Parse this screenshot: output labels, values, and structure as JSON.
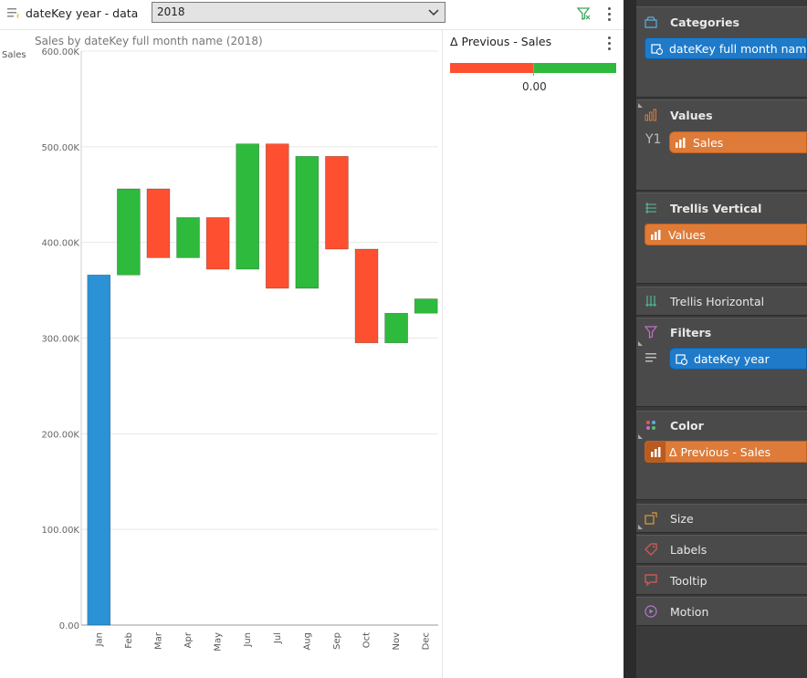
{
  "filter_bar": {
    "label": "dateKey year - data",
    "selected": "2018",
    "icon": "filter-list-icon"
  },
  "chart_data": {
    "type": "bar",
    "subtype": "waterfall",
    "title": "Sales by dateKey full month name (2018)",
    "ylabel": "Sales",
    "xlabel": "",
    "ylim": [
      0,
      600000
    ],
    "y_ticks": [
      "0.00",
      "100.00K",
      "200.00K",
      "300.00K",
      "400.00K",
      "500.00K",
      "600.00K"
    ],
    "categories": [
      "Jan",
      "Feb",
      "Mar",
      "Apr",
      "May",
      "Jun",
      "Jul",
      "Aug",
      "Sep",
      "Oct",
      "Nov",
      "Dec"
    ],
    "bars": [
      {
        "start": 0,
        "end": 366000,
        "kind": "total"
      },
      {
        "start": 366000,
        "end": 456000,
        "kind": "increase"
      },
      {
        "start": 456000,
        "end": 384000,
        "kind": "decrease"
      },
      {
        "start": 384000,
        "end": 426000,
        "kind": "increase"
      },
      {
        "start": 426000,
        "end": 372000,
        "kind": "decrease"
      },
      {
        "start": 372000,
        "end": 503000,
        "kind": "increase"
      },
      {
        "start": 503000,
        "end": 352000,
        "kind": "decrease"
      },
      {
        "start": 352000,
        "end": 490000,
        "kind": "increase"
      },
      {
        "start": 490000,
        "end": 393000,
        "kind": "decrease"
      },
      {
        "start": 393000,
        "end": 295000,
        "kind": "decrease"
      },
      {
        "start": 295000,
        "end": 326000,
        "kind": "increase"
      },
      {
        "start": 326000,
        "end": 341000,
        "kind": "increase"
      }
    ],
    "colors": {
      "total": "#2b92d5",
      "increase": "#2eba3c",
      "decrease": "#fe5031"
    }
  },
  "delta_legend": {
    "title": "Δ Previous - Sales",
    "value": "0.00",
    "neg_color": "#fe5031",
    "pos_color": "#2eba3c"
  },
  "sidebar": {
    "categories": {
      "title": "Categories",
      "pill": "dateKey full month name"
    },
    "values": {
      "title": "Values",
      "axis": "Y1",
      "pill": "Sales"
    },
    "trellis_vertical": {
      "title": "Trellis Vertical",
      "pill": "Values"
    },
    "trellis_horizontal": {
      "title": "Trellis Horizontal"
    },
    "filters": {
      "title": "Filters",
      "pill": "dateKey year"
    },
    "color": {
      "title": "Color",
      "pill": "Δ Previous - Sales"
    },
    "size": {
      "title": "Size"
    },
    "labels": {
      "title": "Labels"
    },
    "tooltip": {
      "title": "Tooltip"
    },
    "motion": {
      "title": "Motion"
    }
  }
}
